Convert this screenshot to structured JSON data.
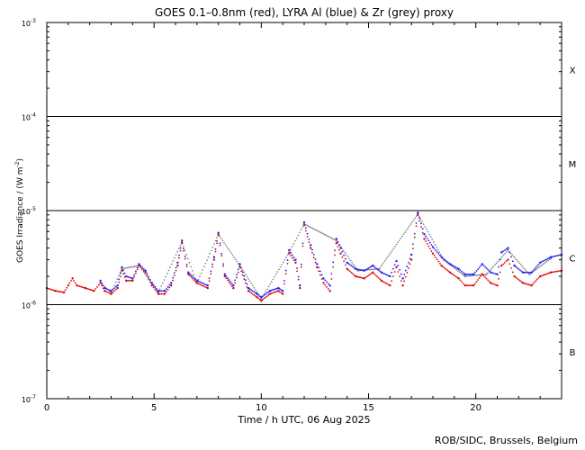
{
  "chart_data": {
    "type": "scatter",
    "title": "GOES 0.1–0.8nm (red), LYRA Al (blue) & Zr (grey) proxy",
    "xlabel": "Time / h UTC, 06 Aug 2025",
    "ylabel": "GOES Irradiance / (W m",
    "ylabel_sup": "-2",
    "xlim": [
      0,
      24
    ],
    "ylim_log10": [
      -7,
      -3
    ],
    "y_scale": "log",
    "x_ticks": [
      {
        "v": 0,
        "label": "0"
      },
      {
        "v": 5,
        "label": "5"
      },
      {
        "v": 10,
        "label": "10"
      },
      {
        "v": 15,
        "label": "15"
      },
      {
        "v": 20,
        "label": "20"
      }
    ],
    "y_ticks": [
      {
        "exp": -3,
        "base": "10",
        "sup": "-3"
      },
      {
        "exp": -4,
        "base": "10",
        "sup": "-4"
      },
      {
        "exp": -5,
        "base": "10",
        "sup": "-5"
      },
      {
        "exp": -6,
        "base": "10",
        "sup": "-6"
      },
      {
        "exp": -7,
        "base": "10",
        "sup": "-7"
      }
    ],
    "class_lines_log10": [
      -4,
      -5,
      -6
    ],
    "flare_classes": [
      {
        "label": "X",
        "y_log10": -3.5
      },
      {
        "label": "M",
        "y_log10": -4.5
      },
      {
        "label": "C",
        "y_log10": -5.5
      },
      {
        "label": "B",
        "y_log10": -6.5
      }
    ],
    "grid": false,
    "colors": {
      "goes": "#e00000",
      "lyra_al": "#1a1aff",
      "lyra_zr": "#8a8a8a",
      "axes": "#000000"
    },
    "series": [
      {
        "name": "GOES 0.1–0.8nm",
        "color": "#e00000",
        "x": [
          0,
          0.4,
          0.8,
          1.0,
          1.2,
          1.4,
          1.8,
          2.2,
          2.5,
          2.7,
          3.0,
          3.3,
          3.5,
          3.7,
          4.0,
          4.3,
          4.6,
          4.9,
          5.2,
          5.5,
          5.8,
          6.1,
          6.3,
          6.6,
          7.0,
          7.5,
          7.8,
          8.0,
          8.3,
          8.7,
          9.0,
          9.4,
          9.8,
          10.0,
          10.4,
          10.8,
          11.0,
          11.3,
          11.6,
          11.8,
          12.0,
          12.3,
          12.6,
          12.9,
          13.2,
          13.5,
          13.7,
          14.0,
          14.4,
          14.8,
          15.2,
          15.6,
          16.0,
          16.3,
          16.6,
          17.0,
          17.3,
          17.6,
          18.0,
          18.4,
          18.8,
          19.2,
          19.5,
          19.9,
          20.3,
          20.7,
          21.0,
          21.2,
          21.5,
          21.8,
          22.2,
          22.6,
          23.0,
          23.5,
          24.0
        ],
        "y": [
          1.5e-06,
          1.4e-06,
          1.35e-06,
          1.6e-06,
          1.9e-06,
          1.6e-06,
          1.5e-06,
          1.4e-06,
          1.7e-06,
          1.4e-06,
          1.3e-06,
          1.5e-06,
          2.3e-06,
          1.8e-06,
          1.8e-06,
          2.6e-06,
          2.2e-06,
          1.6e-06,
          1.3e-06,
          1.3e-06,
          1.6e-06,
          2.6e-06,
          4.5e-06,
          2.1e-06,
          1.7e-06,
          1.5e-06,
          3e-06,
          5.5e-06,
          2e-06,
          1.5e-06,
          2.5e-06,
          1.4e-06,
          1.2e-06,
          1.1e-06,
          1.3e-06,
          1.4e-06,
          1.3e-06,
          3.5e-06,
          2.8e-06,
          1.5e-06,
          7e-06,
          4e-06,
          2.5e-06,
          1.7e-06,
          1.4e-06,
          4.5e-06,
          3.5e-06,
          2.4e-06,
          2e-06,
          1.9e-06,
          2.2e-06,
          1.8e-06,
          1.6e-06,
          2.5e-06,
          1.6e-06,
          3e-06,
          9e-06,
          5e-06,
          3.5e-06,
          2.6e-06,
          2.2e-06,
          1.9e-06,
          1.6e-06,
          1.6e-06,
          2.1e-06,
          1.7e-06,
          1.6e-06,
          2.6e-06,
          3e-06,
          2e-06,
          1.7e-06,
          1.6e-06,
          2e-06,
          2.2e-06,
          2.3e-06
        ]
      },
      {
        "name": "LYRA Al",
        "color": "#1a1aff",
        "x": [
          2.5,
          2.7,
          3.0,
          3.3,
          3.5,
          3.7,
          4.0,
          4.3,
          4.6,
          4.9,
          5.2,
          5.5,
          5.8,
          6.1,
          6.3,
          6.6,
          7.0,
          7.5,
          7.8,
          8.0,
          8.3,
          8.7,
          9.0,
          9.4,
          9.8,
          10.0,
          10.4,
          10.8,
          11.0,
          11.3,
          11.6,
          11.8,
          12.0,
          12.3,
          12.6,
          12.9,
          13.2,
          13.5,
          13.7,
          14.0,
          14.4,
          14.8,
          15.2,
          15.6,
          16.0,
          16.3,
          16.6,
          17.0,
          17.3,
          17.6,
          18.0,
          18.4,
          18.8,
          19.2,
          19.5,
          19.9,
          20.3,
          20.7,
          21.0,
          21.2,
          21.5,
          21.8,
          22.2,
          22.6,
          23.0,
          23.5,
          24.0
        ],
        "y": [
          1.8e-06,
          1.5e-06,
          1.4e-06,
          1.6e-06,
          2.5e-06,
          2e-06,
          1.9e-06,
          2.7e-06,
          2.3e-06,
          1.7e-06,
          1.4e-06,
          1.4e-06,
          1.7e-06,
          2.8e-06,
          4.8e-06,
          2.2e-06,
          1.8e-06,
          1.6e-06,
          3.2e-06,
          5.8e-06,
          2.1e-06,
          1.6e-06,
          2.7e-06,
          1.5e-06,
          1.3e-06,
          1.2e-06,
          1.4e-06,
          1.5e-06,
          1.4e-06,
          3.8e-06,
          3e-06,
          1.6e-06,
          7.5e-06,
          4.3e-06,
          2.7e-06,
          1.9e-06,
          1.6e-06,
          5e-06,
          4e-06,
          2.8e-06,
          2.4e-06,
          2.3e-06,
          2.6e-06,
          2.2e-06,
          2e-06,
          2.9e-06,
          1.9e-06,
          3.4e-06,
          9.5e-06,
          5.6e-06,
          4.1e-06,
          3.2e-06,
          2.7e-06,
          2.4e-06,
          2.1e-06,
          2.1e-06,
          2.7e-06,
          2.2e-06,
          2.1e-06,
          3.6e-06,
          4e-06,
          2.6e-06,
          2.2e-06,
          2.2e-06,
          2.8e-06,
          3.2e-06,
          3.4e-06
        ]
      },
      {
        "name": "LYRA Zr",
        "color": "#8a8a8a",
        "x": [
          2.5,
          3.0,
          3.5,
          4.3,
          5.2,
          6.3,
          7.0,
          8.0,
          9.0,
          10.0,
          11.3,
          12.0,
          13.5,
          14.5,
          15.5,
          17.3,
          18.5,
          19.5,
          20.5,
          21.5,
          22.5,
          23.5
        ],
        "y": [
          1.7e-06,
          1.35e-06,
          2.4e-06,
          2.6e-06,
          1.35e-06,
          4.6e-06,
          1.7e-06,
          5.6e-06,
          2.6e-06,
          1.15e-06,
          3.6e-06,
          7.2e-06,
          4.8e-06,
          2.3e-06,
          2.4e-06,
          9.2e-06,
          3e-06,
          2e-06,
          2.1e-06,
          3.8e-06,
          2.1e-06,
          3.1e-06
        ]
      }
    ]
  },
  "footer": "ROB/SIDC, Brussels, Belgium"
}
